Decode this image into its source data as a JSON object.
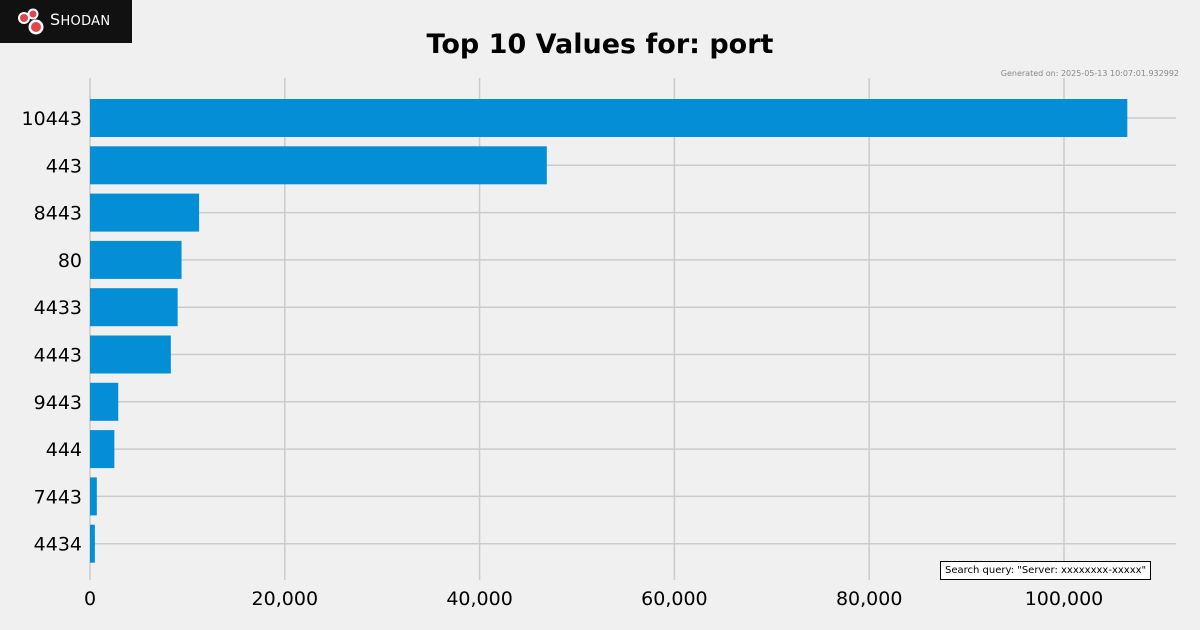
{
  "brand": {
    "name": "Shodan",
    "logo_label_first": "S",
    "logo_label_rest": "HODAN"
  },
  "header": {
    "title": "Top 10 Values for: port",
    "generated": "Generated on: 2025-05-13 10:07:01.932992"
  },
  "footer": {
    "search_query": "Search query: \"Server: xxxxxxxx-xxxxx\""
  },
  "colors": {
    "bar": "#038ed6",
    "background": "#f0f0f0",
    "grid": "#cbcbcb",
    "logo_bg": "#111111",
    "logo_circle": "#e0464b"
  },
  "chart_data": {
    "type": "bar",
    "orientation": "horizontal",
    "title": "Top 10 Values for: port",
    "xlabel": "",
    "ylabel": "",
    "categories": [
      "10443",
      "443",
      "8443",
      "80",
      "4433",
      "4443",
      "9443",
      "444",
      "7443",
      "4434"
    ],
    "values": [
      106500,
      46900,
      11200,
      9400,
      9000,
      8300,
      2900,
      2500,
      700,
      500
    ],
    "xlim": [
      0,
      111500
    ],
    "xticks": [
      0,
      20000,
      40000,
      60000,
      80000,
      100000
    ],
    "xtick_labels": [
      "0",
      "20,000",
      "40,000",
      "60,000",
      "80,000",
      "100,000"
    ],
    "grid": true
  }
}
